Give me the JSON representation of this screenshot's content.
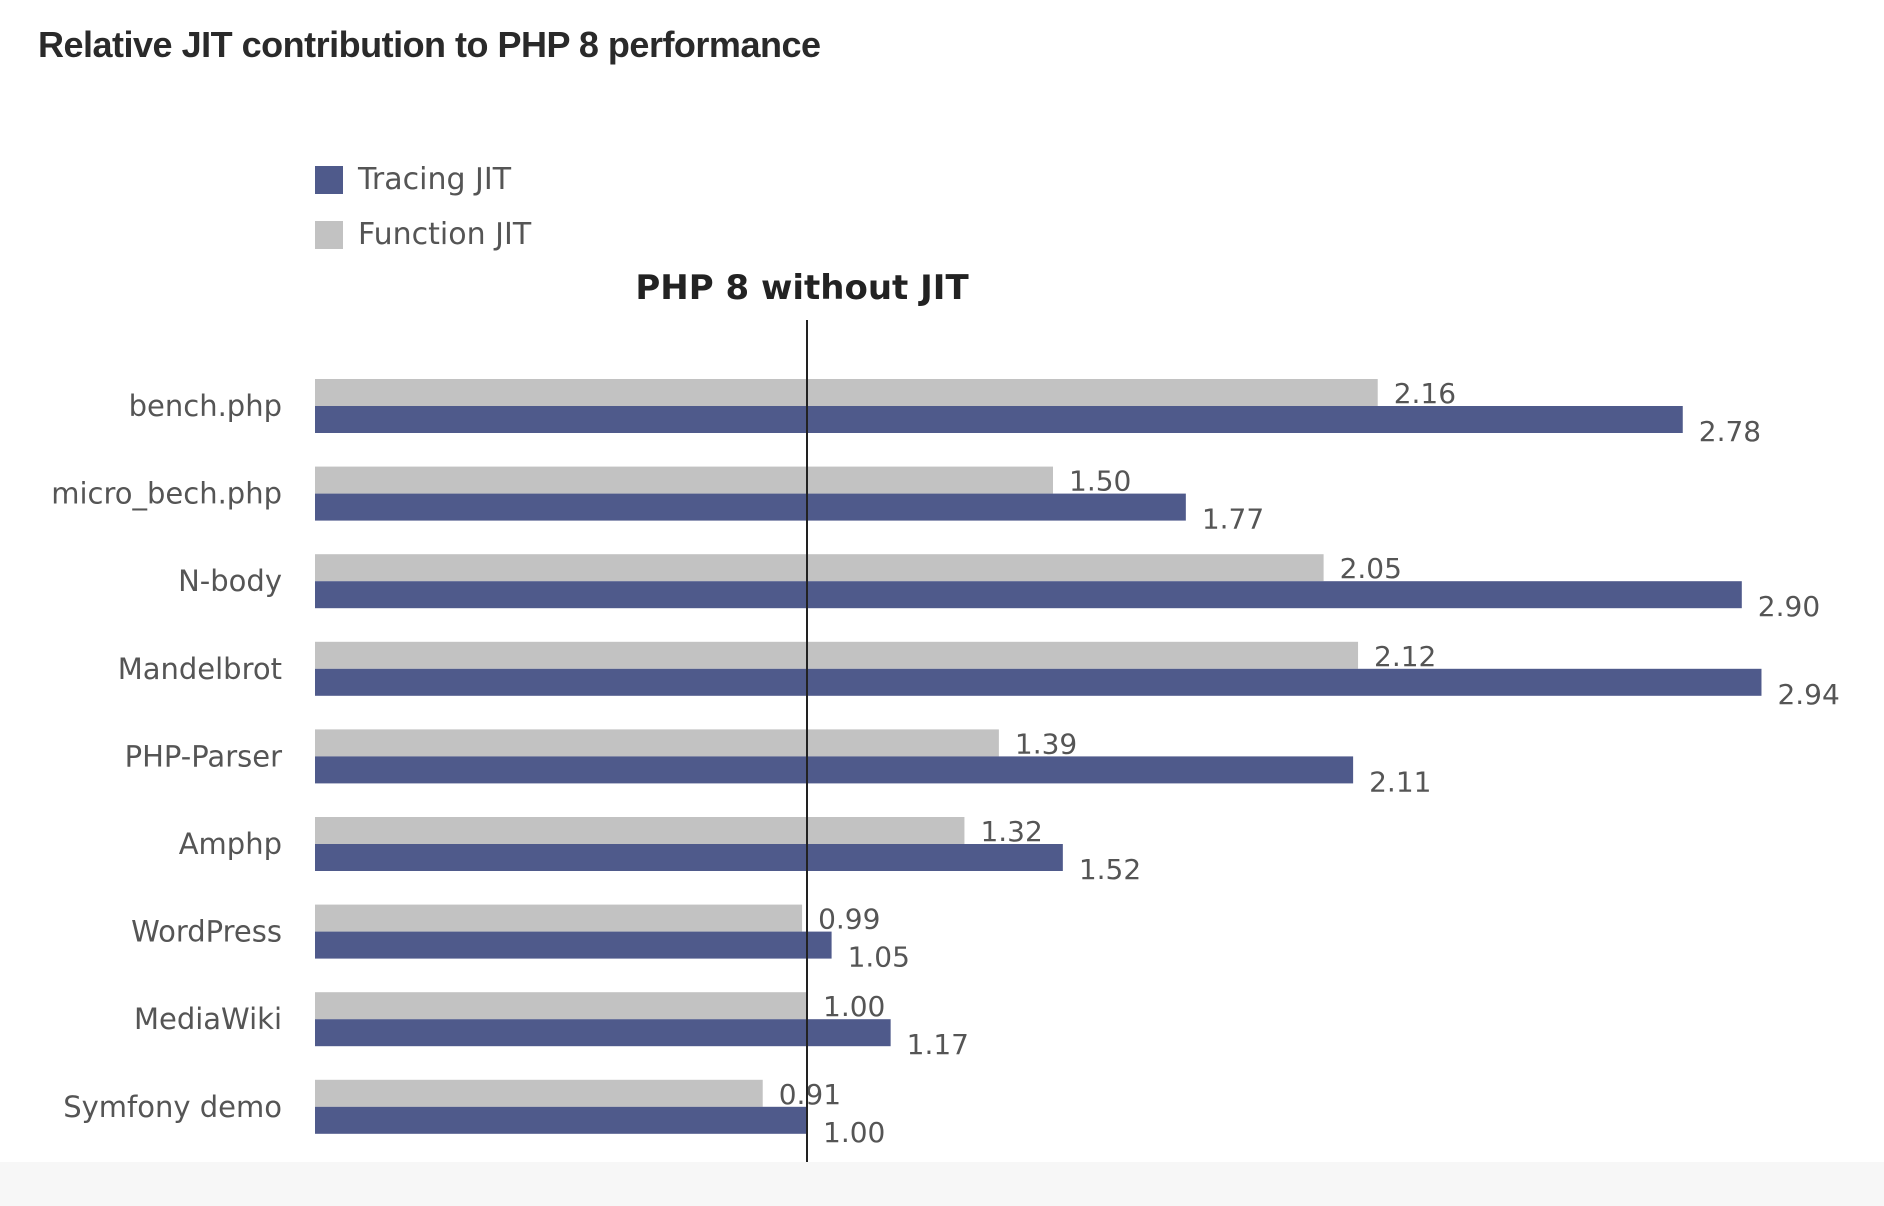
{
  "title": "Relative JIT contribution to PHP 8 performance",
  "legend": [
    {
      "label": "Tracing JIT",
      "color": "#4f5a8b"
    },
    {
      "label": "Function JIT",
      "color": "#c2c2c2"
    }
  ],
  "reference_label": "PHP 8 without JIT",
  "chart_data": {
    "type": "bar",
    "orientation": "horizontal",
    "title": "Relative JIT contribution to PHP 8 performance",
    "categories": [
      "bench.php",
      "micro_bech.php",
      "N-body",
      "Mandelbrot",
      "PHP-Parser",
      "Amphp",
      "WordPress",
      "MediaWiki",
      "Symfony demo"
    ],
    "series": [
      {
        "name": "Function JIT",
        "color": "#c2c2c2",
        "values": [
          2.16,
          1.5,
          2.05,
          2.12,
          1.39,
          1.32,
          0.99,
          1.0,
          0.91
        ],
        "labels": [
          "2.16",
          "1.50",
          "2.05",
          "2.12",
          "1.39",
          "1.32",
          "0.99",
          "1.00",
          "0.91"
        ]
      },
      {
        "name": "Tracing JIT",
        "color": "#4f5a8b",
        "values": [
          2.78,
          1.77,
          2.9,
          2.94,
          2.11,
          1.52,
          1.05,
          1.17,
          1.0
        ],
        "labels": [
          "2.78",
          "1.77",
          "2.90",
          "2.94",
          "2.11",
          "1.52",
          "1.05",
          "1.17",
          "1.00"
        ]
      }
    ],
    "reference_line": {
      "value": 1.0,
      "label": "PHP 8 without JIT"
    },
    "xlim": [
      0,
      3.0
    ],
    "grid": false,
    "legend_position": "top-left"
  }
}
